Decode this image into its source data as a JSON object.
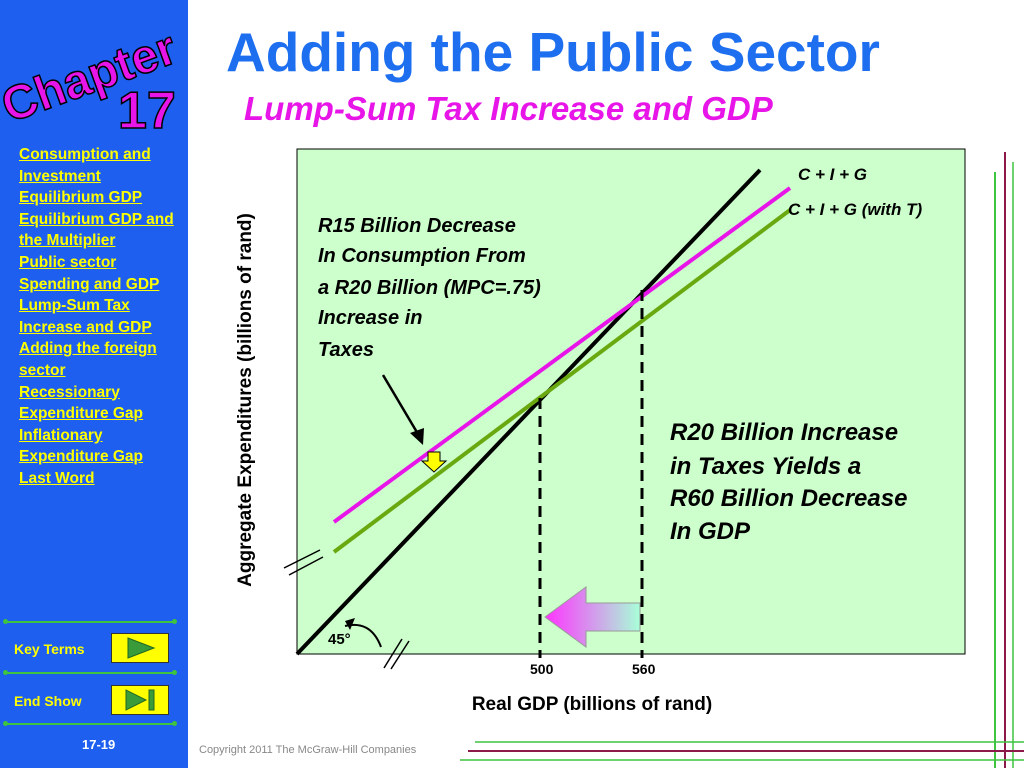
{
  "logo": {
    "word": "Chapter",
    "number": "17"
  },
  "sidebar": {
    "items": [
      {
        "label": "Consumption and Investment"
      },
      {
        "label": "Equilibrium GDP"
      },
      {
        "label": "Equilibrium GDP and the Multiplier"
      },
      {
        "label": "Public sector Spending and GDP"
      },
      {
        "label": "Lump-Sum Tax Increase and GDP"
      },
      {
        "label": "Adding the foreign sector"
      },
      {
        "label": "Recessionary Expenditure Gap"
      },
      {
        "label": "Inflationary Expenditure Gap"
      },
      {
        "label": "Last Word"
      }
    ],
    "key_terms_label": "Key Terms",
    "end_show_label": "End Show",
    "slide_number": "17-19"
  },
  "header": {
    "title": "Adding the Public Sector",
    "subtitle": "Lump-Sum Tax Increase and GDP"
  },
  "diagram": {
    "y_axis_label": "Aggregate Expenditures (billions of rand)",
    "x_axis_label": "Real GDP (billions of rand)",
    "lines": {
      "ci_g": {
        "label": "C + I + G",
        "color": "#e815e8"
      },
      "ci_g_t": {
        "label": "C + I + G (with T)",
        "color": "#6aa810"
      },
      "line_45": {
        "label": "45°",
        "color": "#000000"
      }
    },
    "x_ticks": [
      "500",
      "560"
    ],
    "annotation_left": [
      "R15 Billion Decrease",
      "In Consumption From",
      "a R20 Billion (MPC=.75)",
      "Increase in",
      "Taxes"
    ],
    "annotation_right": [
      "R20 Billion Increase",
      "in Taxes Yields a",
      "R60 Billion Decrease",
      "In GDP"
    ],
    "panel_color": "#ccffcc"
  },
  "footer": {
    "copyright": "Copyright 2011 The McGraw-Hill Companies"
  }
}
